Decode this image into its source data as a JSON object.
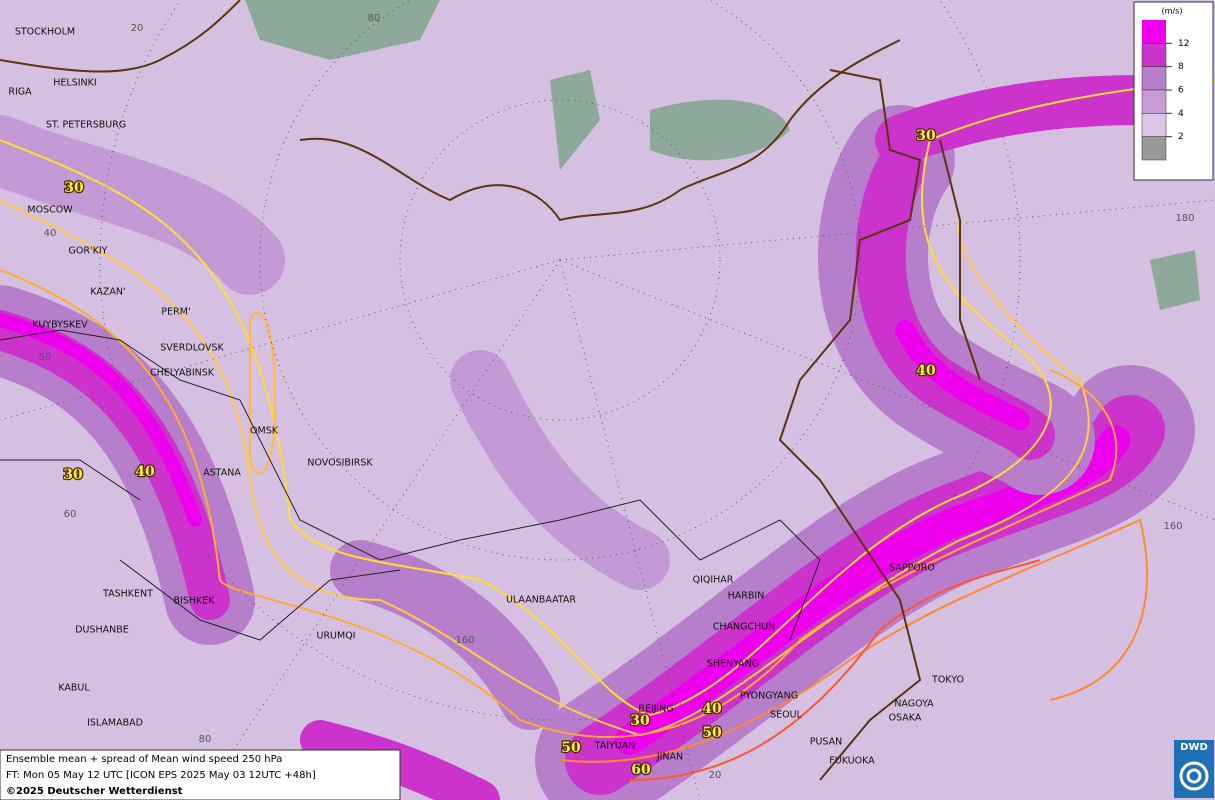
{
  "map": {
    "cities": [
      "STOCKHOLM",
      "HELSINKI",
      "RIGA",
      "ST. PETERSBURG",
      "MOSCOW",
      "GOR'KIY",
      "KAZAN'",
      "PERM'",
      "KUYBYSKEV",
      "SVERDLOVSK",
      "CHELYABINSK",
      "OMSK",
      "NOVOSIBIRSK",
      "ASTANA",
      "TASHKENT",
      "BISHKEK",
      "DUSHANBE",
      "URUMQI",
      "KABUL",
      "ISLAMABAD",
      "ULAANBAATAR",
      "QIQIHAR",
      "HARBIN",
      "CHANGCHUN",
      "SHENYANG",
      "BEIJING",
      "PYONGYANG",
      "SEOUL",
      "TAIYUAN",
      "JINAN",
      "PUSAN",
      "FUKUOKA",
      "SAPPORO",
      "TOKYO",
      "NAGOYA",
      "OSAKA"
    ],
    "contour_labels": [
      30,
      30,
      30,
      30,
      40,
      40,
      40,
      50,
      50,
      60
    ],
    "grid_labels": [
      20,
      80,
      40,
      50,
      60,
      180,
      160,
      160,
      80,
      20
    ],
    "legend": {
      "unit": "(m/s)",
      "levels": [
        {
          "value": 12,
          "color": "#ee00ee"
        },
        {
          "value": 8,
          "color": "#cc33cc"
        },
        {
          "value": 6,
          "color": "#b77fcb"
        },
        {
          "value": 4,
          "color": "#c79cd6"
        },
        {
          "value": 2,
          "color": "#dcc6e6"
        }
      ]
    },
    "footer": [
      "Ensemble mean + spread of Mean wind speed 250 hPa",
      "FT: Mon 05 May 12 UTC [ICON EPS 2025 May 03 12UTC +48h]",
      "©2025 Deutscher Wetterdienst"
    ],
    "logo": "DWD"
  }
}
